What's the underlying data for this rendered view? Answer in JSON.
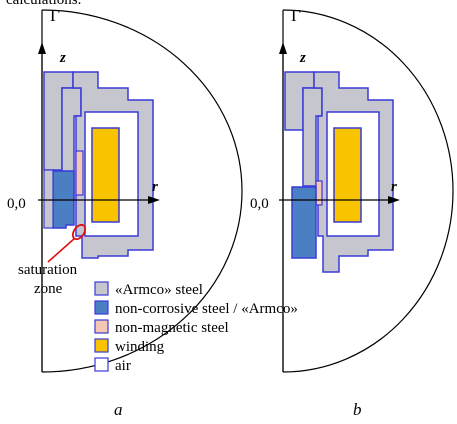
{
  "header": {
    "text": "calculations."
  },
  "panel_a": {
    "boundary_label": "Γ",
    "z_label": "z",
    "r_label": "r",
    "origin_label": "0,0",
    "saturation_label_line1": "saturation",
    "saturation_label_line2": "zone",
    "caption": "a"
  },
  "panel_b": {
    "boundary_label": "Γ",
    "z_label": "z",
    "r_label": "r",
    "origin_label": "0,0",
    "caption": "b"
  },
  "legend": {
    "items": [
      {
        "label": "«Armco» steel",
        "color": "#c6c6ce"
      },
      {
        "label": "non-corrosive steel / «Armco»",
        "color": "#4a7fc4"
      },
      {
        "label": "non-magnetic steel",
        "color": "#f3c7b4"
      },
      {
        "label": "winding",
        "color": "#f8c400"
      },
      {
        "label": "air",
        "color": "#ffffff"
      }
    ]
  },
  "colors": {
    "outline": "#3a3ad8",
    "highlight": "#e01010",
    "axis": "#000000"
  }
}
